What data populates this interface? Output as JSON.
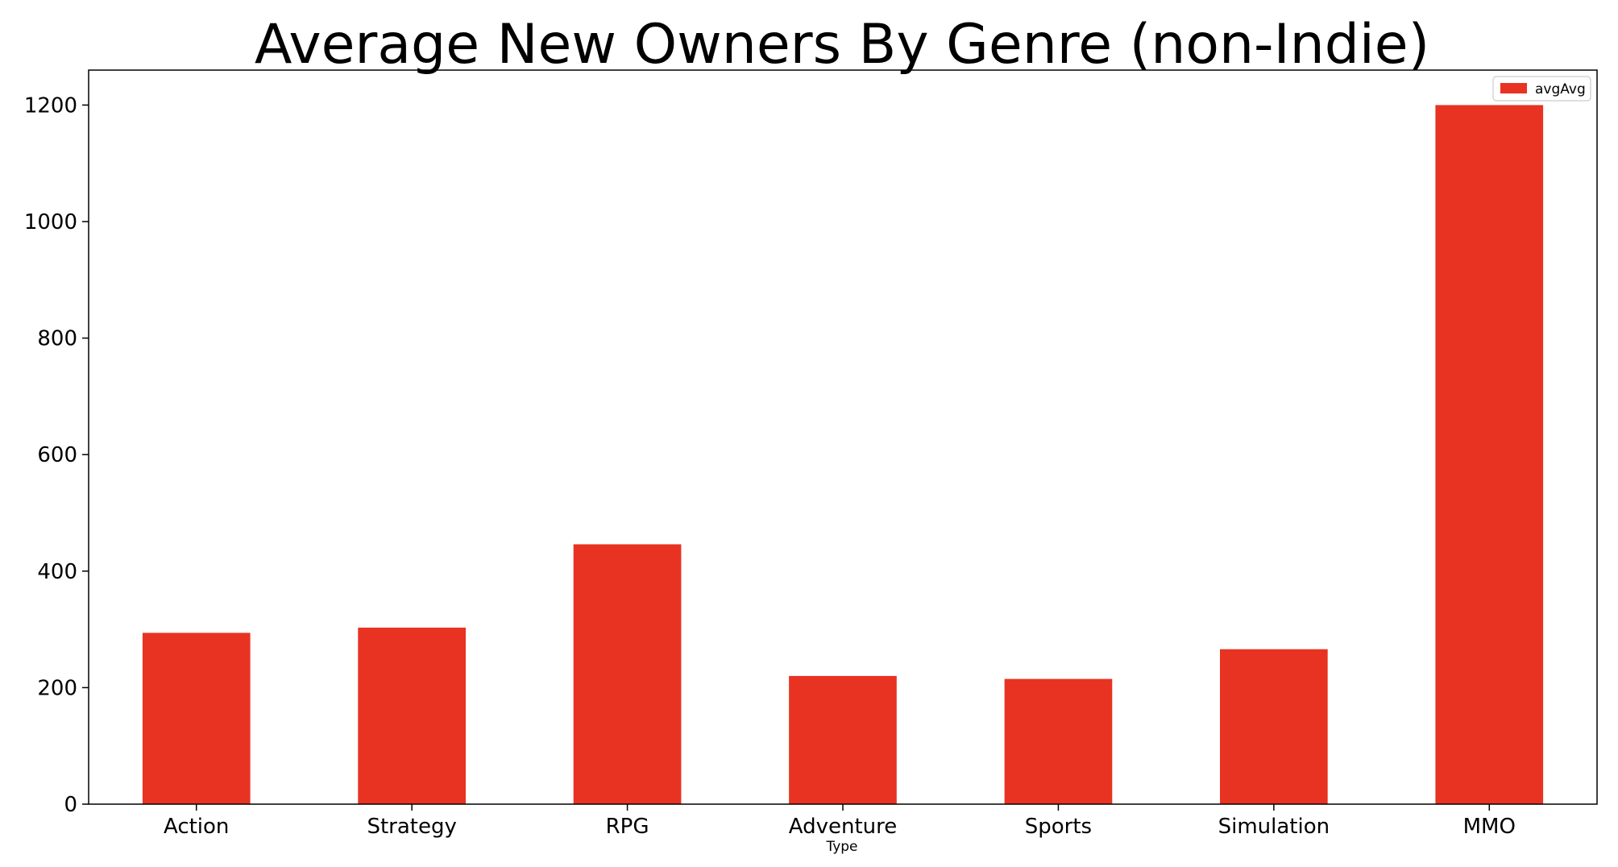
{
  "chart_data": {
    "type": "bar",
    "title": "Average New Owners By Genre (non-Indie)",
    "xlabel": "Type",
    "ylabel": "",
    "categories": [
      "Action",
      "Strategy",
      "RPG",
      "Adventure",
      "Sports",
      "Simulation",
      "MMO"
    ],
    "series": [
      {
        "name": "avgAvg",
        "color": "#e83323",
        "values": [
          294,
          303,
          446,
          220,
          215,
          266,
          1200
        ]
      }
    ],
    "ylim": [
      0,
      1260
    ],
    "yticks": [
      "0",
      "200",
      "400",
      "600",
      "800",
      "1000",
      "1200"
    ],
    "grid": false,
    "legend_position": "top-right"
  }
}
